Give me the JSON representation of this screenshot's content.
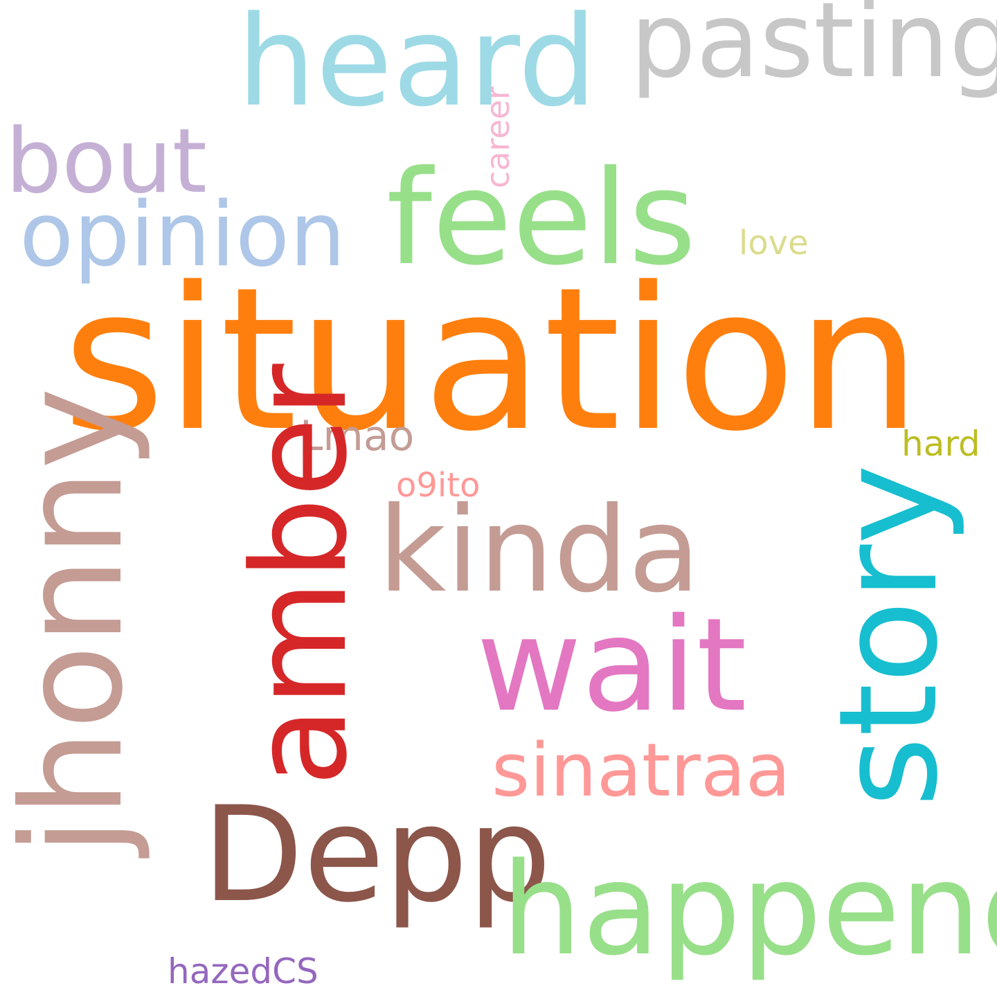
{
  "words": {
    "situation": {
      "text": "situation",
      "color": "#ff7f0e"
    },
    "heard": {
      "text": "heard",
      "color": "#9edae5"
    },
    "pasting": {
      "text": "pasting",
      "color": "#c7c7c7"
    },
    "bout": {
      "text": "bout",
      "color": "#c5b0d5"
    },
    "feels": {
      "text": "feels",
      "color": "#98df8a"
    },
    "opinion": {
      "text": "opinion",
      "color": "#aec7e8"
    },
    "career": {
      "text": "career",
      "color": "#f7b6d2"
    },
    "love": {
      "text": "love",
      "color": "#dbdb8d"
    },
    "jhonny": {
      "text": "jhonny",
      "color": "#c49c94"
    },
    "amber": {
      "text": "amber",
      "color": "#d62728"
    },
    "lmao": {
      "text": "Lmao",
      "color": "#c49c94"
    },
    "o9ito": {
      "text": "o9ito",
      "color": "#ff9896"
    },
    "kinda": {
      "text": "kinda",
      "color": "#c49c94"
    },
    "hard": {
      "text": "hard",
      "color": "#bcbd22"
    },
    "story": {
      "text": "story",
      "color": "#17becf"
    },
    "wait": {
      "text": "wait",
      "color": "#e377c2"
    },
    "sinatraa": {
      "text": "sinatraa",
      "color": "#ff9896"
    },
    "depp": {
      "text": "Depp",
      "color": "#8c564b"
    },
    "happend": {
      "text": "happend",
      "color": "#98df8a"
    },
    "hazedcs": {
      "text": "hazedCS",
      "color": "#9467bd"
    }
  }
}
